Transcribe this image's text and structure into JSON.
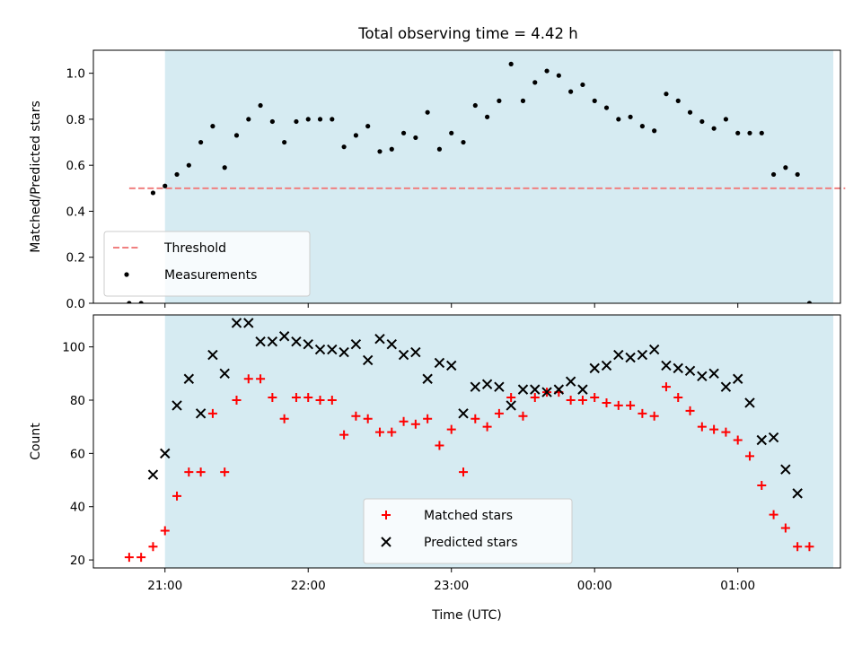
{
  "title": "Total observing time = 4.42 h",
  "colors": {
    "span": "#add8e6",
    "threshold": "#f08080",
    "measurement": "#000000",
    "matched": "#ff0000",
    "predicted": "#000000"
  },
  "chart_data": [
    {
      "type": "scatter",
      "title": "Total observing time = 4.42 h",
      "xlabel": "",
      "ylabel": "Matched/Predicted stars",
      "ylim": [
        0.0,
        1.1
      ],
      "yticks": [
        "0.0",
        "0.2",
        "0.4",
        "0.6",
        "0.8",
        "1.0"
      ],
      "xlim": [
        "20:30",
        "01:43"
      ],
      "shaded_span": [
        "21:00",
        "01:40"
      ],
      "legend_position": "lower-left",
      "threshold": {
        "label": "Threshold",
        "value": 0.5,
        "x_range": [
          "20:45",
          "01:45"
        ]
      },
      "series": [
        {
          "name": "Measurements",
          "x": [
            "20:45",
            "20:50",
            "20:55",
            "21:00",
            "21:05",
            "21:10",
            "21:15",
            "21:20",
            "21:25",
            "21:30",
            "21:35",
            "21:40",
            "21:45",
            "21:50",
            "21:55",
            "22:00",
            "22:05",
            "22:10",
            "22:15",
            "22:20",
            "22:25",
            "22:30",
            "22:35",
            "22:40",
            "22:45",
            "22:50",
            "22:55",
            "23:00",
            "23:05",
            "23:10",
            "23:15",
            "23:20",
            "23:25",
            "23:30",
            "23:35",
            "23:40",
            "23:45",
            "23:50",
            "23:55",
            "00:00",
            "00:05",
            "00:10",
            "00:15",
            "00:20",
            "00:25",
            "00:30",
            "00:35",
            "00:40",
            "00:45",
            "00:50",
            "00:55",
            "01:00",
            "01:05",
            "01:10",
            "01:15",
            "01:20",
            "01:25",
            "01:30"
          ],
          "y": [
            0.0,
            0.0,
            0.48,
            0.51,
            0.56,
            0.6,
            0.7,
            0.77,
            0.59,
            0.73,
            0.8,
            0.86,
            0.79,
            0.7,
            0.79,
            0.8,
            0.8,
            0.8,
            0.68,
            0.73,
            0.77,
            0.66,
            0.67,
            0.74,
            0.72,
            0.83,
            0.67,
            0.74,
            0.7,
            0.86,
            0.81,
            0.88,
            1.04,
            0.88,
            0.96,
            1.01,
            0.99,
            0.92,
            0.95,
            0.88,
            0.85,
            0.8,
            0.81,
            0.77,
            0.75,
            0.91,
            0.88,
            0.83,
            0.79,
            0.76,
            0.8,
            0.74,
            0.74,
            0.74,
            0.56,
            0.59,
            0.56,
            0.0
          ]
        }
      ]
    },
    {
      "type": "scatter",
      "xlabel": "Time (UTC)",
      "ylabel": "Count",
      "ylim": [
        17,
        112
      ],
      "yticks": [
        "20",
        "40",
        "60",
        "80",
        "100"
      ],
      "xlim": [
        "20:30",
        "01:43"
      ],
      "xticks": [
        "21:00",
        "22:00",
        "23:00",
        "00:00",
        "01:00"
      ],
      "shaded_span": [
        "21:00",
        "01:40"
      ],
      "legend_position": "lower-center",
      "series": [
        {
          "name": "Matched stars",
          "marker": "plus",
          "x": [
            "20:45",
            "20:50",
            "20:55",
            "21:00",
            "21:05",
            "21:10",
            "21:15",
            "21:20",
            "21:25",
            "21:30",
            "21:35",
            "21:40",
            "21:45",
            "21:50",
            "21:55",
            "22:00",
            "22:05",
            "22:10",
            "22:15",
            "22:20",
            "22:25",
            "22:30",
            "22:35",
            "22:40",
            "22:45",
            "22:50",
            "22:55",
            "23:00",
            "23:05",
            "23:10",
            "23:15",
            "23:20",
            "23:25",
            "23:30",
            "23:35",
            "23:40",
            "23:45",
            "23:50",
            "23:55",
            "00:00",
            "00:05",
            "00:10",
            "00:15",
            "00:20",
            "00:25",
            "00:30",
            "00:35",
            "00:40",
            "00:45",
            "00:50",
            "00:55",
            "01:00",
            "01:05",
            "01:10",
            "01:15",
            "01:20",
            "01:25",
            "01:30"
          ],
          "y": [
            21,
            21,
            25,
            31,
            44,
            53,
            53,
            75,
            53,
            80,
            88,
            88,
            81,
            73,
            81,
            81,
            80,
            80,
            67,
            74,
            73,
            68,
            68,
            72,
            71,
            73,
            63,
            69,
            53,
            73,
            70,
            75,
            81,
            74,
            81,
            83,
            83,
            80,
            80,
            81,
            79,
            78,
            78,
            75,
            74,
            85,
            81,
            76,
            70,
            69,
            68,
            65,
            59,
            48,
            37,
            32,
            25,
            25
          ]
        },
        {
          "name": "Predicted stars",
          "marker": "x",
          "x": [
            "20:55",
            "21:00",
            "21:05",
            "21:10",
            "21:15",
            "21:20",
            "21:25",
            "21:30",
            "21:35",
            "21:40",
            "21:45",
            "21:50",
            "21:55",
            "22:00",
            "22:05",
            "22:10",
            "22:15",
            "22:20",
            "22:25",
            "22:30",
            "22:35",
            "22:40",
            "22:45",
            "22:50",
            "22:55",
            "23:00",
            "23:05",
            "23:10",
            "23:15",
            "23:20",
            "23:25",
            "23:30",
            "23:35",
            "23:40",
            "23:45",
            "23:50",
            "23:55",
            "00:00",
            "00:05",
            "00:10",
            "00:15",
            "00:20",
            "00:25",
            "00:30",
            "00:35",
            "00:40",
            "00:45",
            "00:50",
            "00:55",
            "01:00",
            "01:05",
            "01:10",
            "01:15",
            "01:20",
            "01:25"
          ],
          "y": [
            52,
            60,
            78,
            88,
            75,
            97,
            90,
            109,
            109,
            102,
            102,
            104,
            102,
            101,
            99,
            99,
            98,
            101,
            95,
            103,
            101,
            97,
            98,
            88,
            94,
            93,
            75,
            85,
            86,
            85,
            78,
            84,
            84,
            83,
            84,
            87,
            84,
            92,
            93,
            97,
            96,
            97,
            99,
            93,
            92,
            91,
            89,
            90,
            85,
            88,
            79,
            65,
            66,
            54,
            45
          ]
        }
      ]
    }
  ]
}
